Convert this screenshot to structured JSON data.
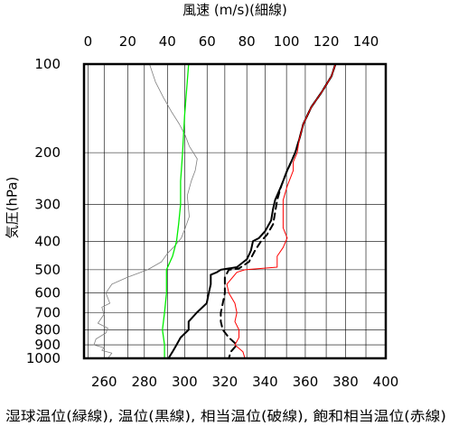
{
  "chart_data": {
    "type": "line",
    "top_axis_label": "風速 (m/s)(細線)",
    "bottom_axis_label": "湿球温位(緑線), 温位(黒線), 相当温位(破線), 飽和相当温位(赤線)",
    "y_axis_label": "気圧(hPa)",
    "x_bottom": {
      "range": [
        250,
        400
      ],
      "ticks": [
        260,
        280,
        300,
        320,
        340,
        360,
        380,
        400
      ],
      "unit": "K"
    },
    "x_top": {
      "range": [
        -2,
        150
      ],
      "ticks": [
        0,
        20,
        40,
        60,
        80,
        100,
        120,
        140
      ],
      "unit": "m/s"
    },
    "y": {
      "range": [
        100,
        1000
      ],
      "scale": "log-pressure",
      "inverted": true,
      "ticks": [
        100,
        200,
        300,
        400,
        500,
        600,
        700,
        800,
        900,
        1000
      ]
    },
    "grid": true,
    "series": [
      {
        "key": "wind",
        "axis": "top",
        "color": "#808080",
        "style": "thin",
        "points": [
          [
            31,
            100
          ],
          [
            34,
            115
          ],
          [
            38,
            130
          ],
          [
            42,
            145
          ],
          [
            46,
            160
          ],
          [
            49,
            175
          ],
          [
            51,
            190
          ],
          [
            55,
            210
          ],
          [
            54,
            230
          ],
          [
            52,
            250
          ],
          [
            50,
            280
          ],
          [
            51,
            330
          ],
          [
            49,
            360
          ],
          [
            47,
            390
          ],
          [
            43,
            420
          ],
          [
            40,
            440
          ],
          [
            37,
            470
          ],
          [
            30,
            500
          ],
          [
            20,
            530
          ],
          [
            12,
            560
          ],
          [
            9,
            600
          ],
          [
            11,
            650
          ],
          [
            7,
            670
          ],
          [
            8,
            710
          ],
          [
            5,
            760
          ],
          [
            10,
            790
          ],
          [
            9,
            820
          ],
          [
            4,
            860
          ],
          [
            3,
            900
          ],
          [
            8,
            920
          ],
          [
            7,
            940
          ],
          [
            12,
            960
          ],
          [
            10,
            1000
          ]
        ]
      },
      {
        "key": "wet_bulb_potential_temperature",
        "axis": "bottom",
        "color": "#00ee00",
        "style": "solid",
        "points": [
          [
            302,
            100
          ],
          [
            300,
            150
          ],
          [
            299,
            200
          ],
          [
            298,
            250
          ],
          [
            298,
            300
          ],
          [
            297,
            350
          ],
          [
            296,
            400
          ],
          [
            294,
            450
          ],
          [
            291,
            500
          ],
          [
            291,
            600
          ],
          [
            290,
            700
          ],
          [
            289,
            800
          ],
          [
            290,
            900
          ],
          [
            290,
            1000
          ]
        ]
      },
      {
        "key": "potential_temperature",
        "axis": "bottom",
        "color": "#000000",
        "style": "solid",
        "points": [
          [
            375,
            100
          ],
          [
            373,
            110
          ],
          [
            368,
            125
          ],
          [
            363,
            140
          ],
          [
            359,
            160
          ],
          [
            357,
            180
          ],
          [
            355,
            200
          ],
          [
            353,
            215
          ],
          [
            351,
            230
          ],
          [
            348,
            260
          ],
          [
            345,
            290
          ],
          [
            344,
            310
          ],
          [
            343,
            340
          ],
          [
            340,
            370
          ],
          [
            337,
            390
          ],
          [
            334,
            400
          ],
          [
            333,
            430
          ],
          [
            331,
            460
          ],
          [
            326,
            490
          ],
          [
            318,
            500
          ],
          [
            316,
            510
          ],
          [
            313,
            520
          ],
          [
            313,
            560
          ],
          [
            312,
            600
          ],
          [
            311,
            650
          ],
          [
            306,
            700
          ],
          [
            302,
            750
          ],
          [
            302,
            800
          ],
          [
            298,
            850
          ],
          [
            296,
            900
          ],
          [
            294,
            950
          ],
          [
            292,
            1000
          ]
        ]
      },
      {
        "key": "equivalent_potential_temperature",
        "axis": "bottom",
        "color": "#000000",
        "style": "dashed",
        "points": [
          [
            375,
            100
          ],
          [
            373,
            110
          ],
          [
            368,
            125
          ],
          [
            363,
            140
          ],
          [
            359,
            160
          ],
          [
            357,
            180
          ],
          [
            355,
            200
          ],
          [
            353,
            215
          ],
          [
            351,
            230
          ],
          [
            348,
            260
          ],
          [
            346,
            290
          ],
          [
            345,
            320
          ],
          [
            344,
            350
          ],
          [
            341,
            380
          ],
          [
            338,
            400
          ],
          [
            335,
            430
          ],
          [
            332,
            470
          ],
          [
            327,
            495
          ],
          [
            322,
            500
          ],
          [
            320,
            530
          ],
          [
            320,
            600
          ],
          [
            319,
            650
          ],
          [
            318,
            700
          ],
          [
            318,
            750
          ],
          [
            319,
            800
          ],
          [
            322,
            850
          ],
          [
            326,
            900
          ],
          [
            323,
            950
          ],
          [
            322,
            1000
          ]
        ]
      },
      {
        "key": "saturated_equivalent_potential_temperature",
        "axis": "bottom",
        "color": "#ff0000",
        "style": "solid",
        "points": [
          [
            375,
            100
          ],
          [
            373,
            110
          ],
          [
            368,
            125
          ],
          [
            363,
            140
          ],
          [
            359,
            160
          ],
          [
            357,
            180
          ],
          [
            356,
            200
          ],
          [
            354,
            215
          ],
          [
            354,
            230
          ],
          [
            351,
            260
          ],
          [
            349,
            290
          ],
          [
            349,
            320
          ],
          [
            349,
            360
          ],
          [
            351,
            390
          ],
          [
            349,
            420
          ],
          [
            346,
            450
          ],
          [
            346,
            490
          ],
          [
            330,
            500
          ],
          [
            326,
            510
          ],
          [
            321,
            560
          ],
          [
            322,
            600
          ],
          [
            325,
            650
          ],
          [
            326,
            700
          ],
          [
            325,
            750
          ],
          [
            327,
            800
          ],
          [
            327,
            850
          ],
          [
            325,
            900
          ],
          [
            329,
            950
          ],
          [
            330,
            1000
          ]
        ]
      }
    ]
  }
}
